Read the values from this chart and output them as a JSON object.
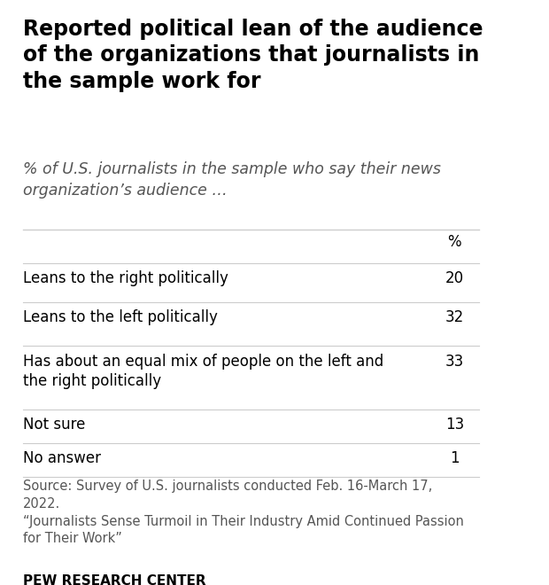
{
  "title": "Reported political lean of the audience\nof the organizations that journalists in\nthe sample work for",
  "subtitle": "% of U.S. journalists in the sample who say their news\norganization’s audience …",
  "col_header": "%",
  "rows": [
    {
      "label": "Leans to the right politically",
      "value": "20"
    },
    {
      "label": "Leans to the left politically",
      "value": "32"
    },
    {
      "label": "Has about an equal mix of people on the left and\nthe right politically",
      "value": "33"
    },
    {
      "label": "Not sure",
      "value": "13"
    },
    {
      "label": "No answer",
      "value": "1"
    }
  ],
  "source_text": "Source: Survey of U.S. journalists conducted Feb. 16-March 17,\n2022.\n“Journalists Sense Turmoil in Their Industry Amid Continued Passion\nfor Their Work”",
  "footer": "PEW RESEARCH CENTER",
  "bg_color": "#ffffff",
  "title_color": "#000000",
  "subtitle_color": "#555555",
  "row_label_color": "#000000",
  "row_value_color": "#000000",
  "source_color": "#555555",
  "footer_color": "#000000",
  "divider_color": "#cccccc",
  "title_fontsize": 17,
  "subtitle_fontsize": 12.5,
  "header_fontsize": 12,
  "row_fontsize": 12,
  "source_fontsize": 10.5,
  "footer_fontsize": 11
}
